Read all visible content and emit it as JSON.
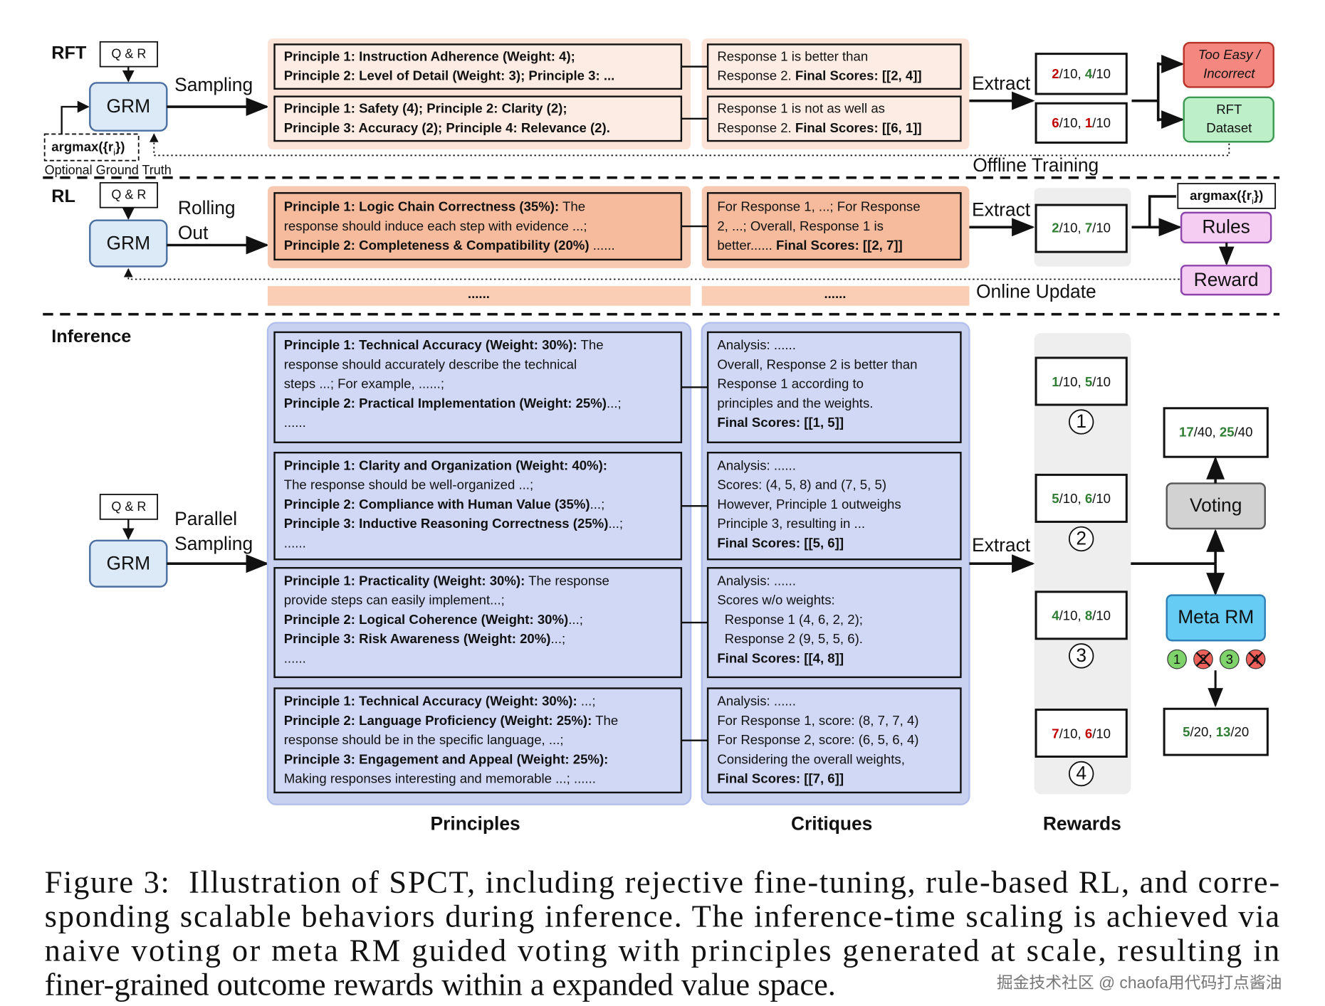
{
  "sections": {
    "rft": "RFT",
    "rl": "RL",
    "inference": "Inference"
  },
  "rft": {
    "qr": "Q & R",
    "grm": "GRM",
    "sampling": "Sampling",
    "argmax": [
      {
        "bold": "argmax({r"
      },
      {
        "sub": "i"
      },
      {
        "bold": "})"
      }
    ],
    "optional": "Optional Ground Truth",
    "principles": [
      [
        [
          {
            "bold": "Principle 1: Instruction Adherence (Weight: 4);"
          }
        ],
        [
          {
            "bold": "Principle 2: Level of Detail (Weight: 3); Principle 3: ..."
          }
        ]
      ],
      [
        [
          {
            "bold": "Principle 1: Safety (4); Principle 2: Clarity (2);"
          }
        ],
        [
          {
            "bold": "Principle 3: Accuracy (2); Principle 4: Relevance (2)."
          }
        ]
      ]
    ],
    "critiques": [
      [
        "Response 1 is better than",
        [
          {
            "text": "Response 2. "
          },
          {
            "bold": "Final Scores: [[2, 4]]"
          }
        ]
      ],
      [
        "Response 1 is not as well as",
        [
          {
            "text": "Response 2. "
          },
          {
            "bold": "Final Scores: [[6, 1]]"
          }
        ]
      ]
    ],
    "extract": "Extract",
    "rewards": [
      [
        {
          "bold": "2",
          "color": "#c00000"
        },
        {
          "text": "/10, "
        },
        {
          "bold": "4",
          "color": "#2e7d32"
        },
        {
          "text": "/10"
        }
      ],
      [
        {
          "bold": "6",
          "color": "#c00000"
        },
        {
          "text": "/10, "
        },
        {
          "bold": "1",
          "color": "#c00000"
        },
        {
          "text": "/10"
        }
      ]
    ],
    "too_easy": [
      "Too Easy /",
      "Incorrect"
    ],
    "rft_dataset": [
      "RFT",
      "Dataset"
    ],
    "offline": "Offline Training"
  },
  "rl": {
    "qr": "Q & R",
    "grm": "GRM",
    "rolling": [
      "Rolling",
      "Out"
    ],
    "principles": [
      [
        {
          "bold": "Principle 1: Logic Chain Correctness (35%):"
        },
        {
          "text": " The"
        }
      ],
      "response should induce each step with evidence ...;",
      [
        {
          "bold": "Principle 2: Completeness & Compatibility (20%)"
        },
        {
          "text": " ......"
        }
      ]
    ],
    "critiques": [
      "For Response 1, ...; For Response",
      "2, ...; Overall, Response 1 is",
      [
        {
          "text": "better...... "
        },
        {
          "bold": "Final Scores: [[2, 7]]"
        }
      ]
    ],
    "extract": "Extract",
    "reward": [
      {
        "bold": "2",
        "color": "#2e7d32"
      },
      {
        "text": "/10, "
      },
      {
        "bold": "7",
        "color": "#2e7d32"
      },
      {
        "text": "/10"
      }
    ],
    "argmax": [
      {
        "bold": "argmax({r"
      },
      {
        "sub": "i"
      },
      {
        "bold": "})"
      }
    ],
    "rules": "Rules",
    "reward_box": "Reward",
    "online": "Online Update",
    "ellipsis": [
      "......",
      "......"
    ]
  },
  "inference": {
    "qr": "Q & R",
    "grm": "GRM",
    "parallel": [
      "Parallel",
      "Sampling"
    ],
    "principles": [
      [
        [
          {
            "bold": "Principle 1: Technical Accuracy (Weight: 30%):"
          },
          {
            "text": " The"
          }
        ],
        "response should accurately describe the technical",
        "steps ...; For example, ......;",
        [
          {
            "bold": "Principle 2: Practical Implementation (Weight: 25%)"
          },
          {
            "text": "...;"
          }
        ],
        "......"
      ],
      [
        [
          {
            "bold": "Principle 1: Clarity and Organization (Weight: 40%):"
          }
        ],
        "The response should be well-organized ...;",
        [
          {
            "bold": "Principle 2: Compliance with Human Value (35%)"
          },
          {
            "text": "...;"
          }
        ],
        [
          {
            "bold": "Principle 3: Inductive Reasoning Correctness (25%)"
          },
          {
            "text": "...;"
          }
        ],
        "......"
      ],
      [
        [
          {
            "bold": "Principle 1: Practicality (Weight: 30%):"
          },
          {
            "text": " The response"
          }
        ],
        "provide steps can easily implement...;",
        [
          {
            "bold": "Principle 2: Logical Coherence (Weight: 30%)"
          },
          {
            "text": "...;"
          }
        ],
        [
          {
            "bold": "Principle 3: Risk Awareness (Weight: 20%)"
          },
          {
            "text": "...;"
          }
        ],
        "......"
      ],
      [
        [
          {
            "bold": "Principle 1: Technical Accuracy (Weight: 30%):"
          },
          {
            "text": " ...;"
          }
        ],
        [
          {
            "bold": "Principle 2: Language Proficiency (Weight: 25%):"
          },
          {
            "text": " The"
          }
        ],
        "response should be in the specific language, ...;",
        [
          {
            "bold": "Principle 3: Engagement and Appeal (Weight: 25%):"
          }
        ],
        "Making responses interesting and memorable ...; ......"
      ]
    ],
    "critiques": [
      [
        "Analysis: ......",
        "Overall, Response 2 is better than",
        "Response 1 according to",
        "principles and the weights.",
        [
          {
            "bold": "Final Scores: [[1, 5]]"
          }
        ]
      ],
      [
        "Analysis: ......",
        "Scores: (4, 5, 8) and (7, 5, 5)",
        "However, Principle 1 outweighs",
        "Principle 3, resulting in ...",
        [
          {
            "bold": "Final Scores: [[5, 6]]"
          }
        ]
      ],
      [
        "Analysis: ......",
        "Scores w/o weights:",
        "  Response 1 (4, 6, 2, 2);",
        "  Response 2 (9, 5, 5, 6).",
        [
          {
            "bold": "Final Scores: [[4, 8]]"
          }
        ]
      ],
      [
        "Analysis: ......",
        "For Response 1, score: (8, 7, 7, 4)",
        "For Response 2, score: (6, 5, 6, 4)",
        "Considering the overall weights,",
        [
          {
            "bold": "Final Scores: [[7, 6]]"
          }
        ]
      ]
    ],
    "extract": "Extract",
    "rewards": [
      [
        {
          "bold": "1",
          "color": "#2e7d32"
        },
        {
          "text": "/10, "
        },
        {
          "bold": "5",
          "color": "#2e7d32"
        },
        {
          "text": "/10"
        }
      ],
      [
        {
          "bold": "5",
          "color": "#2e7d32"
        },
        {
          "text": "/10, "
        },
        {
          "bold": "6",
          "color": "#2e7d32"
        },
        {
          "text": "/10"
        }
      ],
      [
        {
          "bold": "4",
          "color": "#2e7d32"
        },
        {
          "text": "/10, "
        },
        {
          "bold": "8",
          "color": "#2e7d32"
        },
        {
          "text": "/10"
        }
      ],
      [
        {
          "bold": "7",
          "color": "#c00000"
        },
        {
          "text": "/10, "
        },
        {
          "bold": "6",
          "color": "#c00000"
        },
        {
          "text": "/10"
        }
      ]
    ],
    "circle_labels": [
      "1",
      "2",
      "3",
      "4"
    ],
    "voting": "Voting",
    "voting_result": [
      {
        "bold": "17",
        "color": "#2e7d32"
      },
      {
        "text": "/40, "
      },
      {
        "bold": "25",
        "color": "#2e7d32"
      },
      {
        "text": "/40"
      }
    ],
    "meta_rm": "Meta RM",
    "meta_rm_accepted": [
      true,
      false,
      true,
      false
    ],
    "meta_result": [
      {
        "bold": "5",
        "color": "#2e7d32"
      },
      {
        "text": "/20, "
      },
      {
        "bold": "13",
        "color": "#2e7d32"
      },
      {
        "text": "/20"
      }
    ]
  },
  "columns": {
    "principles": "Principles",
    "critiques": "Critiques",
    "rewards": "Rewards"
  },
  "caption": [
    "Figure 3:  Illustration of SPCT, including rejective fine-tuning, rule-based RL, and corre-",
    "sponding scalable behaviors during inference. The inference-time scaling is achieved via",
    "naive voting or meta RM guided voting with principles generated at scale, resulting in",
    "finer-grained outcome rewards within a expanded value space."
  ],
  "watermark": "掘金技术社区 @ chaofa用代码打点酱油"
}
